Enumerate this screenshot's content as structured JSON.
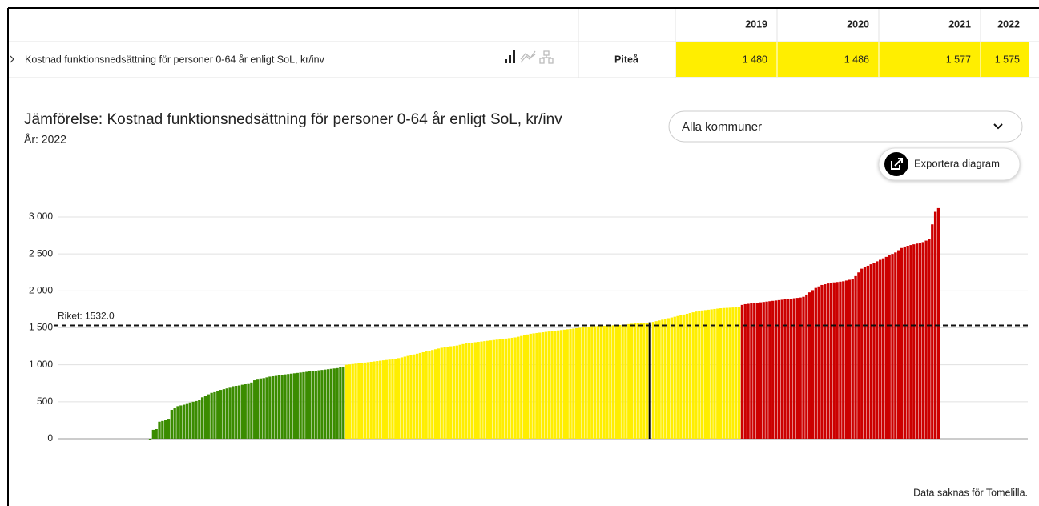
{
  "table": {
    "columns": [
      "2019",
      "2020",
      "2021",
      "2022"
    ],
    "row": {
      "label": "Kostnad funktionsnedsättning för personer 0-64 år enligt SoL, kr/inv",
      "region": "Piteå",
      "values": [
        "1 480",
        "1 486",
        "1 577",
        "1 575"
      ]
    }
  },
  "controls": {
    "dropdown": "Alla kommuner",
    "export": "Exportera diagram"
  },
  "chart_data": {
    "type": "bar",
    "title": "Jämförelse: Kostnad funktionsnedsättning för personer 0-64 år enligt SoL, kr/inv",
    "subtitle": "År: 2022",
    "ylim": [
      0,
      3000
    ],
    "yticks": [
      0,
      500,
      {
        "value": 1000,
        "label": "1 000"
      },
      {
        "value": 1500,
        "label": "1 500"
      },
      {
        "value": 2000,
        "label": "2 000"
      },
      {
        "value": 2500,
        "label": "2 500"
      },
      {
        "value": 3000,
        "label": "3 000"
      }
    ],
    "grid": true,
    "reference": {
      "label": "Riket: 1532.0",
      "value": 1532
    },
    "highlight": {
      "series": 2,
      "index": 99,
      "color": "#000000"
    },
    "series": [
      {
        "color": "#3b8c00",
        "values": [
          0,
          0,
          0,
          0,
          0,
          0,
          0,
          0,
          0,
          0,
          0,
          0,
          0,
          0,
          0,
          0,
          0,
          0,
          0,
          0,
          0,
          0,
          0,
          0,
          0,
          0,
          0,
          0,
          0,
          0,
          0,
          -10
        ]
      },
      {
        "color": "#3b8c00",
        "values": [
          120,
          130,
          230,
          240,
          250,
          270,
          390,
          420,
          440,
          450,
          460,
          480,
          490,
          500,
          510,
          520,
          560,
          580,
          600,
          620,
          640,
          650,
          660,
          670,
          680,
          700,
          710,
          715,
          720,
          730,
          740,
          750,
          760,
          790,
          810,
          815,
          820,
          830,
          840,
          845,
          850,
          860,
          865,
          870,
          875,
          880,
          885,
          890,
          895,
          900,
          905,
          910,
          915,
          920,
          925,
          930,
          935,
          940,
          945,
          950,
          955,
          965,
          975
        ]
      },
      {
        "color": "#ffee00",
        "values": [
          1000,
          1005,
          1010,
          1015,
          1020,
          1025,
          1030,
          1035,
          1040,
          1045,
          1050,
          1055,
          1060,
          1065,
          1070,
          1075,
          1080,
          1090,
          1100,
          1110,
          1120,
          1130,
          1140,
          1150,
          1160,
          1170,
          1180,
          1190,
          1200,
          1210,
          1220,
          1230,
          1240,
          1245,
          1250,
          1255,
          1260,
          1270,
          1280,
          1290,
          1295,
          1300,
          1305,
          1310,
          1315,
          1320,
          1325,
          1330,
          1335,
          1340,
          1345,
          1350,
          1355,
          1360,
          1365,
          1370,
          1380,
          1390,
          1400,
          1410,
          1420,
          1425,
          1430,
          1435,
          1440,
          1445,
          1450,
          1455,
          1460,
          1465,
          1470,
          1475,
          1480,
          1485,
          1490,
          1495,
          1500,
          1505,
          1510,
          1515,
          1520,
          1522,
          1524,
          1526,
          1528,
          1530,
          1532,
          1534,
          1536,
          1538,
          1540,
          1545,
          1550,
          1555,
          1560,
          1562,
          1565,
          1568,
          1570,
          1575,
          1580,
          1590,
          1600,
          1610,
          1620,
          1630,
          1640,
          1650,
          1660,
          1670,
          1680,
          1690,
          1700,
          1710,
          1720,
          1730,
          1735,
          1740,
          1745,
          1750,
          1755,
          1760,
          1765,
          1768,
          1770,
          1772,
          1775,
          1778,
          1780
        ]
      },
      {
        "color": "#cc0000",
        "values": [
          1810,
          1820,
          1825,
          1830,
          1835,
          1840,
          1845,
          1850,
          1855,
          1860,
          1865,
          1870,
          1875,
          1880,
          1885,
          1890,
          1895,
          1900,
          1905,
          1910,
          1920,
          1950,
          1980,
          2010,
          2040,
          2060,
          2080,
          2090,
          2100,
          2110,
          2115,
          2120,
          2125,
          2130,
          2140,
          2150,
          2160,
          2200,
          2250,
          2300,
          2320,
          2340,
          2360,
          2380,
          2400,
          2420,
          2440,
          2460,
          2480,
          2500,
          2520,
          2550,
          2580,
          2600,
          2610,
          2620,
          2630,
          2640,
          2650,
          2660,
          2680,
          2700,
          2900,
          3070,
          3120
        ]
      }
    ],
    "note": "Data saknas för Tomelilla."
  }
}
